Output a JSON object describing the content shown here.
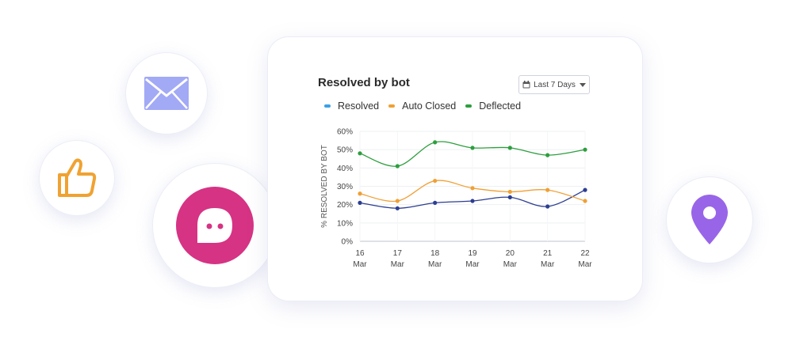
{
  "colors": {
    "mail": "#a2a9f5",
    "thumb": "#f0a231",
    "chat": "#d63384",
    "pin": "#9865e8"
  },
  "icons": {
    "mail": "envelope-icon",
    "thumb": "thumbs-up-icon",
    "chat": "chat-bubble-icon",
    "pin": "location-pin-icon",
    "calendar": "calendar-icon"
  },
  "date_filter": {
    "label": "Last 7 Days"
  },
  "chart_data": {
    "type": "line",
    "title": "Resolved by bot",
    "ylabel": "% RESOLVED BY BOT",
    "xlabel": "",
    "ylim": [
      0,
      60
    ],
    "yticks": [
      "0%",
      "10%",
      "20%",
      "30%",
      "40%",
      "50%",
      "60%"
    ],
    "categories": [
      {
        "day": "16",
        "month": "Mar"
      },
      {
        "day": "17",
        "month": "Mar"
      },
      {
        "day": "18",
        "month": "Mar"
      },
      {
        "day": "19",
        "month": "Mar"
      },
      {
        "day": "20",
        "month": "Mar"
      },
      {
        "day": "21",
        "month": "Mar"
      },
      {
        "day": "22",
        "month": "Mar"
      }
    ],
    "legend_position": "top-left",
    "grid": true,
    "series": [
      {
        "name": "Resolved",
        "color": "#2c3e91",
        "legend_color": "#3ba0e6",
        "values": [
          21,
          18,
          21,
          22,
          24,
          19,
          28
        ]
      },
      {
        "name": "Auto Closed",
        "color": "#f0a035",
        "legend_color": "#f0a035",
        "values": [
          26,
          22,
          33,
          29,
          27,
          28,
          22
        ]
      },
      {
        "name": "Deflected",
        "color": "#2e9e3e",
        "legend_color": "#2e9e3e",
        "values": [
          48,
          41,
          54,
          51,
          51,
          47,
          50
        ]
      }
    ]
  }
}
